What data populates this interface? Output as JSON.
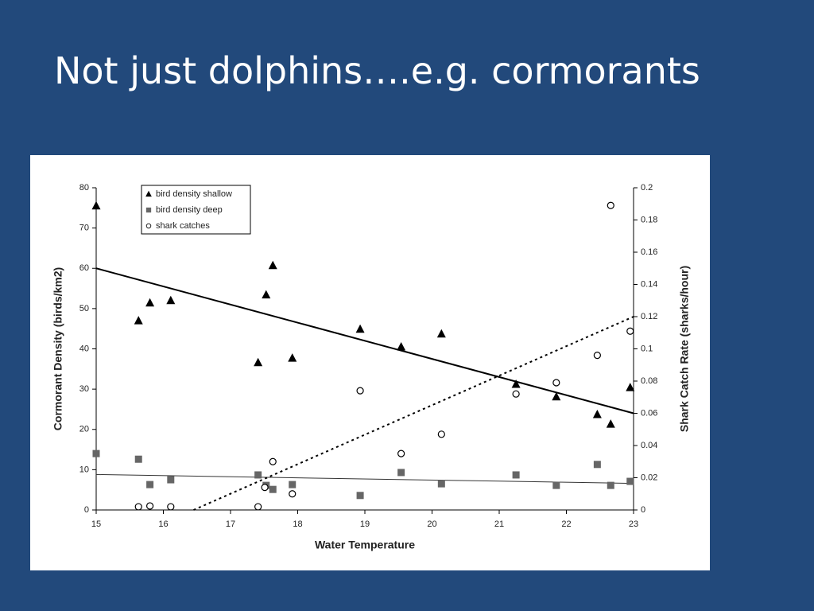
{
  "title": "Not just dolphins….e.g. cormorants",
  "chart_data": {
    "type": "scatter",
    "x_label": "Water Temperature",
    "y_label": "Cormorant Density (birds/km2)",
    "y2_label": "Shark Catch Rate (sharks/hour)",
    "xlim": [
      15,
      23
    ],
    "xticks": [
      15,
      16,
      17,
      18,
      19,
      20,
      21,
      22,
      23
    ],
    "ylim": [
      0,
      80
    ],
    "yticks": [
      0,
      10,
      20,
      30,
      40,
      50,
      60,
      70,
      80
    ],
    "y2lim": [
      0,
      0.2
    ],
    "y2ticks": [
      0,
      0.02,
      0.04,
      0.06,
      0.08,
      0.1,
      0.12,
      0.14,
      0.16,
      0.18,
      0.2
    ],
    "legend": "upper left",
    "series": [
      {
        "name": "bird density shallow",
        "marker": "triangle",
        "color": "#000000",
        "x": [
          15,
          15.63,
          15.8,
          16.11,
          17.41,
          17.53,
          17.63,
          17.92,
          18.93,
          19.54,
          20.14,
          21.25,
          21.85,
          22.46,
          22.66,
          22.95
        ],
        "values": [
          75.5,
          47,
          51.4,
          52,
          36.6,
          53.4,
          60.7,
          37.7,
          44.9,
          40.5,
          43.7,
          31.2,
          28.1,
          23.7,
          21.3,
          30.4
        ]
      },
      {
        "name": "bird density deep",
        "marker": "square",
        "color": "#666666",
        "x": [
          15,
          15.63,
          15.8,
          16.11,
          17.41,
          17.53,
          17.63,
          17.92,
          18.93,
          19.54,
          20.14,
          21.25,
          21.85,
          22.46,
          22.66,
          22.95
        ],
        "values": [
          14,
          12.6,
          6.3,
          7.5,
          8.7,
          6.1,
          5.1,
          6.3,
          3.6,
          9.3,
          6.5,
          8.7,
          6.1,
          11.3,
          6.1,
          7.1
        ]
      },
      {
        "name": "shark catches",
        "marker": "circle",
        "color": "#000000",
        "axis": "y2",
        "x": [
          15.63,
          15.8,
          16.11,
          17.41,
          17.51,
          17.63,
          17.92,
          18.93,
          19.54,
          20.14,
          21.25,
          21.85,
          22.46,
          22.66,
          22.95
        ],
        "values": [
          0.002,
          0.0025,
          0.002,
          0.002,
          0.014,
          0.03,
          0.01,
          0.074,
          0.035,
          0.047,
          0.072,
          0.079,
          0.096,
          0.189,
          0.111
        ]
      }
    ],
    "trendlines": [
      {
        "x": [
          15,
          23
        ],
        "values": [
          60,
          24
        ],
        "color": "#000000",
        "style": "solid"
      },
      {
        "x": [
          15,
          23
        ],
        "values": [
          8.8,
          6.6
        ],
        "color": "#333333",
        "style": "thin"
      },
      {
        "x": [
          16.45,
          23
        ],
        "values": [
          0,
          0.12
        ],
        "color": "#000000",
        "style": "dotted",
        "axis": "y2"
      }
    ]
  }
}
